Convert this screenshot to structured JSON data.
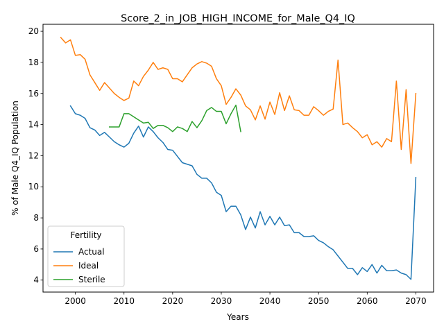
{
  "chart_data": {
    "type": "line",
    "title": "Score_2_in_JOB_HIGH_INCOME_for_Male_Q4_IQ",
    "xlabel": "Years",
    "ylabel": "% of Male Q4_IQ Population",
    "xlim": [
      1993.35,
      2073.65
    ],
    "ylim": [
      3.23,
      20.45
    ],
    "xticks": [
      2000,
      2010,
      2020,
      2030,
      2040,
      2050,
      2060,
      2070
    ],
    "yticks": [
      4,
      6,
      8,
      10,
      12,
      14,
      16,
      18,
      20
    ],
    "grid": false,
    "legend": {
      "title": "Fertility",
      "position": "lower-left",
      "entries": [
        "Actual",
        "Ideal",
        "Sterile"
      ]
    },
    "series": [
      {
        "name": "Actual",
        "color": "#1f77b4",
        "x": [
          1999,
          2000,
          2001,
          2002,
          2003,
          2004,
          2005,
          2006,
          2007,
          2008,
          2009,
          2010,
          2011,
          2012,
          2013,
          2014,
          2015,
          2016,
          2017,
          2018,
          2019,
          2020,
          2021,
          2022,
          2023,
          2024,
          2025,
          2026,
          2027,
          2028,
          2029,
          2030,
          2031,
          2032,
          2033,
          2034,
          2035,
          2036,
          2037,
          2038,
          2039,
          2040,
          2041,
          2042,
          2043,
          2044,
          2045,
          2046,
          2047,
          2048,
          2049,
          2050,
          2051,
          2052,
          2053,
          2054,
          2055,
          2056,
          2057,
          2058,
          2059,
          2060,
          2061,
          2062,
          2063,
          2064,
          2065,
          2066,
          2067,
          2068,
          2069,
          2070
        ],
        "y": [
          15.2,
          14.7,
          14.6,
          14.4,
          13.8,
          13.65,
          13.3,
          13.5,
          13.2,
          12.9,
          12.7,
          12.55,
          12.8,
          13.45,
          13.9,
          13.2,
          13.85,
          13.55,
          13.15,
          12.85,
          12.4,
          12.35,
          11.95,
          11.55,
          11.45,
          11.35,
          10.8,
          10.55,
          10.55,
          10.25,
          9.65,
          9.45,
          8.4,
          8.75,
          8.75,
          8.2,
          7.25,
          8.05,
          7.35,
          8.4,
          7.55,
          8.1,
          7.55,
          8.05,
          7.5,
          7.55,
          7.05,
          7.05,
          6.8,
          6.8,
          6.85,
          6.55,
          6.4,
          6.15,
          5.95,
          5.55,
          5.15,
          4.75,
          4.75,
          4.35,
          4.8,
          4.55,
          5.0,
          4.45,
          4.95,
          4.6,
          4.6,
          4.65,
          4.45,
          4.35,
          4.05,
          10.6
        ]
      },
      {
        "name": "Ideal",
        "color": "#ff7f0e",
        "x": [
          1997,
          1998,
          1999,
          2000,
          2001,
          2002,
          2003,
          2004,
          2005,
          2006,
          2007,
          2008,
          2009,
          2010,
          2011,
          2012,
          2013,
          2014,
          2015,
          2016,
          2017,
          2018,
          2019,
          2020,
          2021,
          2022,
          2023,
          2024,
          2025,
          2026,
          2027,
          2028,
          2029,
          2030,
          2031,
          2032,
          2033,
          2034,
          2035,
          2036,
          2037,
          2038,
          2039,
          2040,
          2041,
          2042,
          2043,
          2044,
          2045,
          2046,
          2047,
          2048,
          2049,
          2050,
          2051,
          2052,
          2053,
          2054,
          2055,
          2056,
          2057,
          2058,
          2059,
          2060,
          2061,
          2062,
          2063,
          2064,
          2065,
          2066,
          2067,
          2068,
          2069,
          2070
        ],
        "y": [
          19.6,
          19.25,
          19.45,
          18.45,
          18.5,
          18.2,
          17.2,
          16.7,
          16.2,
          16.7,
          16.35,
          16.0,
          15.75,
          15.55,
          15.7,
          16.8,
          16.5,
          17.1,
          17.5,
          18.0,
          17.55,
          17.65,
          17.55,
          16.95,
          16.95,
          16.75,
          17.2,
          17.65,
          17.9,
          18.05,
          17.95,
          17.75,
          16.95,
          16.5,
          15.3,
          15.75,
          16.3,
          15.9,
          15.2,
          14.95,
          14.3,
          15.2,
          14.35,
          15.45,
          14.65,
          16.05,
          14.9,
          15.85,
          14.95,
          14.9,
          14.6,
          14.6,
          15.15,
          14.9,
          14.6,
          14.85,
          15.0,
          18.15,
          14.0,
          14.1,
          13.8,
          13.55,
          13.15,
          13.35,
          12.7,
          12.9,
          12.55,
          13.1,
          12.9,
          16.8,
          12.4,
          16.25,
          11.5,
          16.0
        ]
      },
      {
        "name": "Sterile",
        "color": "#2ca02c",
        "x": [
          2007,
          2008,
          2009,
          2010,
          2011,
          2012,
          2013,
          2014,
          2015,
          2016,
          2017,
          2018,
          2019,
          2020,
          2021,
          2022,
          2023,
          2024,
          2025,
          2026,
          2027,
          2028,
          2029,
          2030,
          2031,
          2032,
          2033,
          2034
        ],
        "y": [
          13.85,
          13.85,
          13.85,
          14.7,
          14.7,
          14.5,
          14.3,
          14.1,
          14.15,
          13.75,
          13.95,
          13.95,
          13.8,
          13.55,
          13.85,
          13.75,
          13.55,
          14.2,
          13.8,
          14.25,
          14.9,
          15.1,
          14.85,
          14.85,
          14.05,
          14.7,
          15.25,
          13.55
        ]
      }
    ]
  }
}
